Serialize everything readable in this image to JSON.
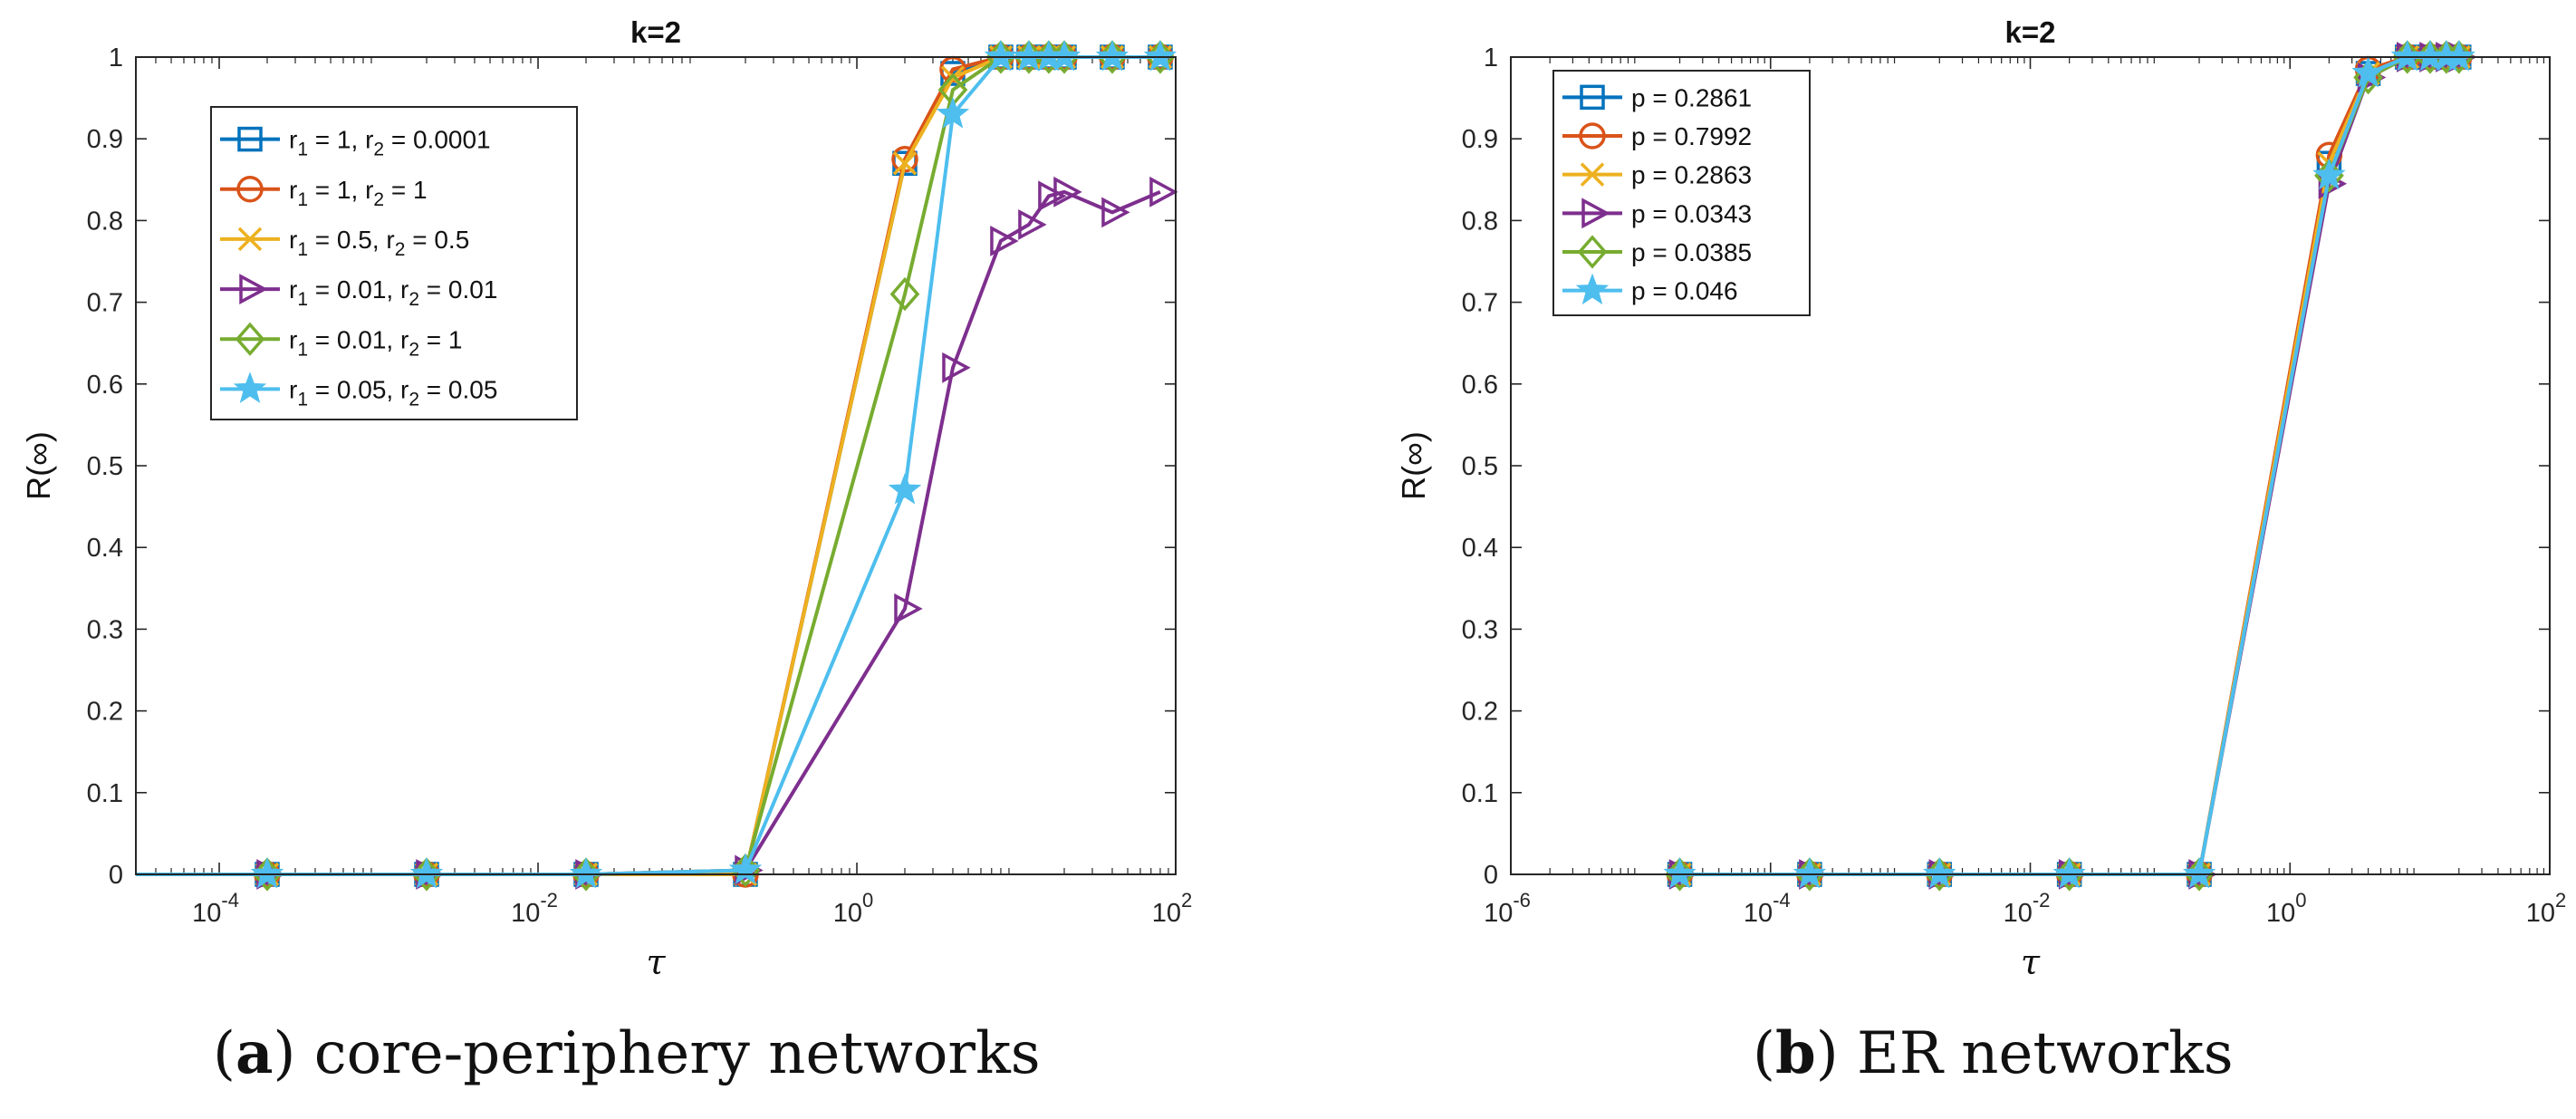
{
  "captions": [
    {
      "letter": "a",
      "text": "core-periphery networks"
    },
    {
      "letter": "b",
      "text": "ER networks"
    }
  ],
  "colors": {
    "blue": "#0072BD",
    "orange": "#D95319",
    "yellow": "#EDB120",
    "purple": "#7E2F8E",
    "green": "#77AC30",
    "cyan": "#4DBEEE"
  },
  "chart_data": [
    {
      "type": "line",
      "title": "k=2",
      "xlabel": "τ",
      "ylabel": "R(∞)",
      "xscale": "log",
      "xlim": [
        3e-05,
        100
      ],
      "ylim": [
        0,
        1
      ],
      "xticks": [
        0.0001,
        0.01,
        1,
        100
      ],
      "xtick_labels": [
        [
          "10",
          "-4"
        ],
        [
          "10",
          "-2"
        ],
        [
          "10",
          "0"
        ],
        [
          "10",
          "2"
        ]
      ],
      "yticks": [
        0,
        0.1,
        0.2,
        0.3,
        0.4,
        0.5,
        0.6,
        0.7,
        0.8,
        0.9,
        1
      ],
      "ytick_labels": [
        "0",
        "0.1",
        "0.2",
        "0.3",
        "0.4",
        "0.5",
        "0.6",
        "0.7",
        "0.8",
        "0.9",
        "1"
      ],
      "legend_position": "top-left",
      "series": [
        {
          "label": [
            [
              "r",
              "1",
              " = 1, "
            ],
            [
              "r",
              "2",
              " = 0.0001"
            ]
          ],
          "color": "#0072BD",
          "marker": "square",
          "x": [
            1e-05,
            0.0002,
            0.002,
            0.02,
            0.2,
            2,
            4,
            8,
            12,
            16,
            20,
            40,
            80
          ],
          "y": [
            0,
            0,
            0,
            0,
            0,
            0.87,
            0.98,
            1,
            1,
            1,
            1,
            1,
            1
          ]
        },
        {
          "label": [
            [
              "r",
              "1",
              " = 1, "
            ],
            [
              "r",
              "2",
              " = 1"
            ]
          ],
          "color": "#D95319",
          "marker": "circle",
          "x": [
            1e-05,
            0.0002,
            0.002,
            0.02,
            0.2,
            2,
            4,
            8,
            12,
            16,
            20,
            40,
            80
          ],
          "y": [
            0,
            0,
            0,
            0,
            0,
            0.875,
            0.985,
            1,
            1,
            1,
            1,
            1,
            1
          ]
        },
        {
          "label": [
            [
              "r",
              "1",
              " = 0.5, "
            ],
            [
              "r",
              "2",
              " = 0.5"
            ]
          ],
          "color": "#EDB120",
          "marker": "x",
          "x": [
            1e-05,
            0.0002,
            0.002,
            0.02,
            0.2,
            2,
            4,
            8,
            12,
            16,
            20,
            40,
            80
          ],
          "y": [
            0,
            0,
            0,
            0,
            0,
            0.87,
            0.975,
            1,
            1,
            1,
            1,
            1,
            1
          ]
        },
        {
          "label": [
            [
              "r",
              "1",
              " = 0.01, "
            ],
            [
              "r",
              "2",
              " = 0.01"
            ]
          ],
          "color": "#7E2F8E",
          "marker": "triangle-right",
          "x": [
            1e-05,
            0.0002,
            0.002,
            0.02,
            0.2,
            2,
            4,
            8,
            12,
            16,
            20,
            40,
            80
          ],
          "y": [
            0,
            0,
            0,
            0,
            0.005,
            0.325,
            0.62,
            0.775,
            0.795,
            0.83,
            0.835,
            0.81,
            0.835
          ]
        },
        {
          "label": [
            [
              "r",
              "1",
              " = 0.01, "
            ],
            [
              "r",
              "2",
              " = 1"
            ]
          ],
          "color": "#77AC30",
          "marker": "diamond",
          "x": [
            1e-05,
            0.0002,
            0.002,
            0.02,
            0.2,
            2,
            4,
            8,
            12,
            16,
            20,
            40,
            80
          ],
          "y": [
            0,
            0,
            0,
            0,
            0.005,
            0.71,
            0.96,
            1,
            1,
            1,
            1,
            1,
            1
          ]
        },
        {
          "label": [
            [
              "r",
              "1",
              " = 0.05, "
            ],
            [
              "r",
              "2",
              " = 0.05"
            ]
          ],
          "color": "#4DBEEE",
          "marker": "star",
          "x": [
            1e-05,
            0.0002,
            0.002,
            0.02,
            0.2,
            2,
            4,
            8,
            12,
            16,
            20,
            40,
            80
          ],
          "y": [
            0,
            0,
            0,
            0,
            0.005,
            0.47,
            0.93,
            1,
            1,
            1,
            1,
            1,
            1
          ]
        }
      ]
    },
    {
      "type": "line",
      "title": "k=2",
      "xlabel": "τ",
      "ylabel": "R(∞)",
      "xscale": "log",
      "xlim": [
        1e-06,
        100
      ],
      "ylim": [
        0,
        1
      ],
      "xticks": [
        1e-06,
        0.0001,
        0.01,
        1,
        100
      ],
      "xtick_labels": [
        [
          "10",
          "-6"
        ],
        [
          "10",
          "-4"
        ],
        [
          "10",
          "-2"
        ],
        [
          "10",
          "0"
        ],
        [
          "10",
          "2"
        ]
      ],
      "yticks": [
        0,
        0.1,
        0.2,
        0.3,
        0.4,
        0.5,
        0.6,
        0.7,
        0.8,
        0.9,
        1
      ],
      "ytick_labels": [
        "0",
        "0.1",
        "0.2",
        "0.3",
        "0.4",
        "0.5",
        "0.6",
        "0.7",
        "0.8",
        "0.9",
        "1"
      ],
      "legend_position": "top-left",
      "series": [
        {
          "label": [
            [
              "p = 0.2861"
            ]
          ],
          "color": "#0072BD",
          "marker": "square",
          "x": [
            2e-05,
            0.0002,
            0.002,
            0.02,
            0.2,
            2,
            4,
            8,
            12,
            16,
            20
          ],
          "y": [
            0,
            0,
            0,
            0,
            0,
            0.87,
            0.98,
            1,
            1,
            1,
            1
          ]
        },
        {
          "label": [
            [
              "p = 0.7992"
            ]
          ],
          "color": "#D95319",
          "marker": "circle",
          "x": [
            2e-05,
            0.0002,
            0.002,
            0.02,
            0.2,
            2,
            4,
            8,
            12,
            16,
            20
          ],
          "y": [
            0,
            0,
            0,
            0,
            0,
            0.88,
            0.985,
            1,
            1,
            1,
            1
          ]
        },
        {
          "label": [
            [
              "p = 0.2863"
            ]
          ],
          "color": "#EDB120",
          "marker": "x",
          "x": [
            2e-05,
            0.0002,
            0.002,
            0.02,
            0.2,
            2,
            4,
            8,
            12,
            16,
            20
          ],
          "y": [
            0,
            0,
            0,
            0,
            0,
            0.87,
            0.98,
            1,
            1,
            1,
            1
          ]
        },
        {
          "label": [
            [
              "p = 0.0343"
            ]
          ],
          "color": "#7E2F8E",
          "marker": "triangle-right",
          "x": [
            2e-05,
            0.0002,
            0.002,
            0.02,
            0.2,
            2,
            4,
            8,
            12,
            16,
            20
          ],
          "y": [
            0,
            0,
            0,
            0,
            0,
            0.845,
            0.975,
            1,
            1,
            1,
            1
          ]
        },
        {
          "label": [
            [
              "p = 0.0385"
            ]
          ],
          "color": "#77AC30",
          "marker": "diamond",
          "x": [
            2e-05,
            0.0002,
            0.002,
            0.02,
            0.2,
            2,
            4,
            8,
            12,
            16,
            20
          ],
          "y": [
            0,
            0,
            0,
            0,
            0,
            0.855,
            0.975,
            1,
            1,
            1,
            1
          ]
        },
        {
          "label": [
            [
              "p = 0.046"
            ]
          ],
          "color": "#4DBEEE",
          "marker": "star",
          "x": [
            2e-05,
            0.0002,
            0.002,
            0.02,
            0.2,
            2,
            4,
            8,
            12,
            16,
            20
          ],
          "y": [
            0,
            0,
            0,
            0,
            0,
            0.855,
            0.98,
            1,
            1,
            1,
            1
          ]
        }
      ]
    }
  ]
}
